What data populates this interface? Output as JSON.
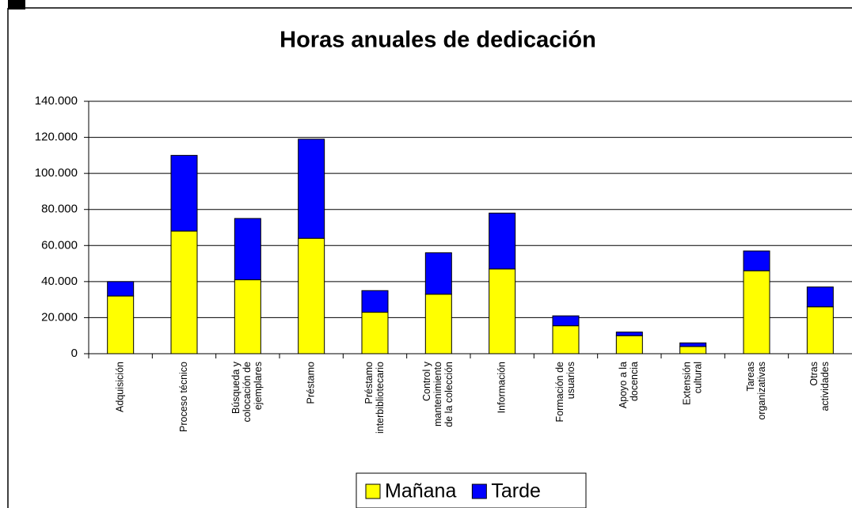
{
  "chart_data": {
    "type": "stacked_bar",
    "title": "Horas anuales de dedicación",
    "categories": [
      [
        "Adquisición"
      ],
      [
        "Proceso técnico"
      ],
      [
        "Búsqueda y",
        "colocación de",
        "ejemplares"
      ],
      [
        "Préstamo"
      ],
      [
        "Préstamo",
        "interbibliotecario"
      ],
      [
        "Control y",
        "mantenimiento",
        "de la colección"
      ],
      [
        "Información"
      ],
      [
        "Formación de",
        "usuarios"
      ],
      [
        "Apoyo a la",
        "docencia"
      ],
      [
        "Extensión",
        "cultural"
      ],
      [
        "Tareas",
        "organizativas"
      ],
      [
        "Otras",
        "actividades"
      ]
    ],
    "series": [
      {
        "name": "Mañana",
        "color": "#ffff00",
        "values": [
          32000,
          68000,
          41000,
          64000,
          23000,
          33000,
          47000,
          15500,
          10000,
          4000,
          46000,
          26000
        ]
      },
      {
        "name": "Tarde",
        "color": "#0000ff",
        "values": [
          8000,
          42000,
          34000,
          55000,
          12000,
          23000,
          31000,
          5500,
          2000,
          2000,
          11000,
          11000
        ]
      }
    ],
    "ylim": [
      0,
      140000
    ],
    "yticks": [
      0,
      {
        "value": 20000,
        "label": "20.000"
      },
      {
        "value": 40000,
        "label": "40.000"
      },
      {
        "value": 60000,
        "label": "60.000"
      },
      {
        "value": 80000,
        "label": "80.000"
      },
      {
        "value": 100000,
        "label": "100.000"
      },
      {
        "value": 120000,
        "label": "120.000"
      },
      {
        "value": 140000,
        "label": "140.000"
      }
    ],
    "grid": true,
    "legend": "bottom"
  }
}
